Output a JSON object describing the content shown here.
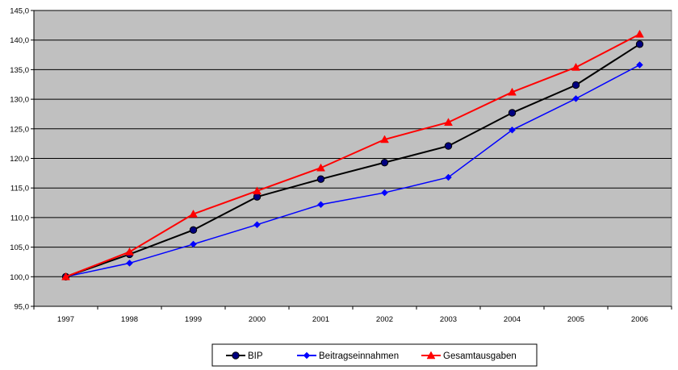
{
  "chart_data": {
    "type": "line",
    "title": "",
    "xlabel": "",
    "ylabel": "",
    "x": [
      "1997",
      "1998",
      "1999",
      "2000",
      "2001",
      "2002",
      "2003",
      "2004",
      "2005",
      "2006"
    ],
    "ylim": [
      95,
      145
    ],
    "yticks": [
      "95,0",
      "100,0",
      "105,0",
      "110,0",
      "115,0",
      "120,0",
      "125,0",
      "130,0",
      "135,0",
      "140,0",
      "145,0"
    ],
    "grid": true,
    "plot_background": "#c0c0c0",
    "legend_position": "bottom",
    "series": [
      {
        "name": "BIP",
        "color": "#000000",
        "marker": "circle",
        "marker_fill": "#000080",
        "values": [
          100.0,
          103.8,
          107.9,
          113.5,
          116.5,
          119.3,
          122.1,
          127.7,
          132.4,
          139.3
        ]
      },
      {
        "name": "Beitragseinnahmen",
        "color": "#0000ff",
        "marker": "diamond",
        "marker_fill": "#0000ff",
        "values": [
          100.0,
          102.3,
          105.5,
          108.8,
          112.2,
          114.2,
          116.8,
          124.8,
          130.1,
          135.8
        ]
      },
      {
        "name": "Gesamtausgaben",
        "color": "#ff0000",
        "marker": "triangle",
        "marker_fill": "#ff0000",
        "values": [
          100.0,
          104.2,
          110.6,
          114.5,
          118.4,
          123.2,
          126.1,
          131.2,
          135.4,
          141.0
        ]
      }
    ]
  }
}
